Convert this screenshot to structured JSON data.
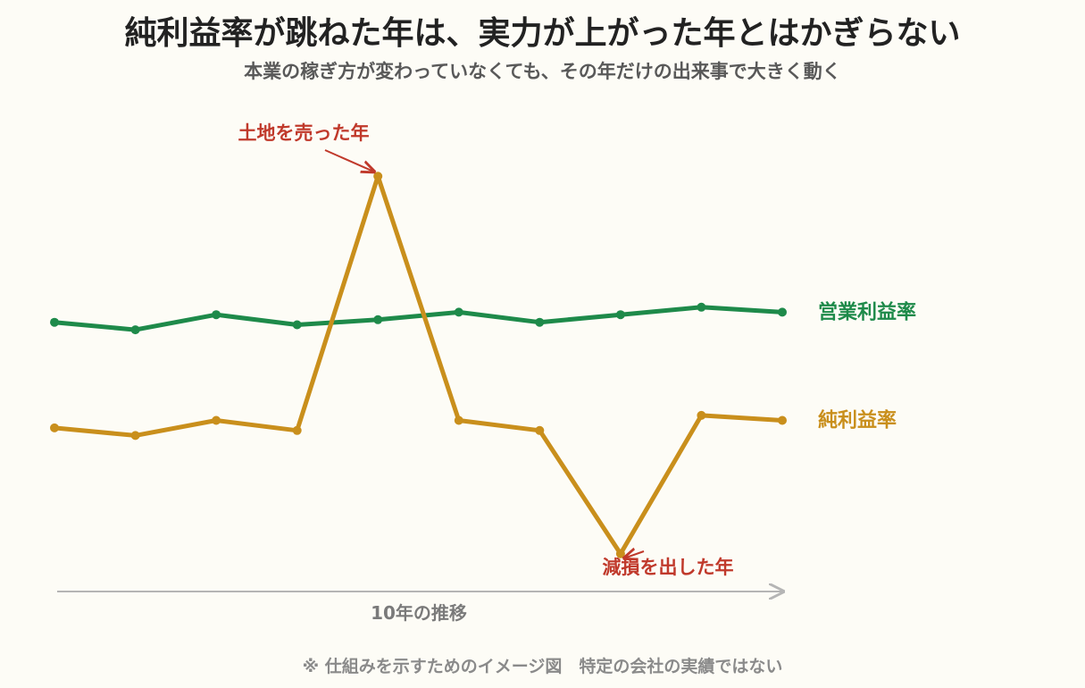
{
  "title": "純利益率が跳ねた年は、実力が上がった年とはかぎらない",
  "subtitle": "本業の稼ぎ方が変わっていなくても、その年だけの出来事で大きく動く",
  "footnote": "※ 仕組みを示すためのイメージ図　特定の会社の実績ではない",
  "colors": {
    "background": "#fdfcf6",
    "operating": "#1e8a4a",
    "net": "#c98f1c",
    "annotation": "#c0392b",
    "axis": "#b5b5b5"
  },
  "chart_data": {
    "type": "line",
    "xlabel": "10年の推移",
    "ylabel": "",
    "x": [
      1,
      2,
      3,
      4,
      5,
      6,
      7,
      8,
      9,
      10
    ],
    "ylim": [
      -4.5,
      14
    ],
    "grid": false,
    "legend": "right",
    "series": [
      {
        "name": "営業利益率",
        "color": "#1e8a4a",
        "values": [
          6.2,
          5.9,
          6.5,
          6.1,
          6.3,
          6.6,
          6.2,
          6.5,
          6.8,
          6.6
        ]
      },
      {
        "name": "純利益率",
        "color": "#c98f1c",
        "values": [
          2.0,
          1.7,
          2.3,
          1.9,
          12.0,
          2.3,
          1.9,
          -3.0,
          2.5,
          2.3
        ]
      }
    ],
    "annotations": [
      {
        "text": "土地を売った年",
        "series": 1,
        "index": 4
      },
      {
        "text": "減損を出した年",
        "series": 1,
        "index": 7
      }
    ]
  }
}
